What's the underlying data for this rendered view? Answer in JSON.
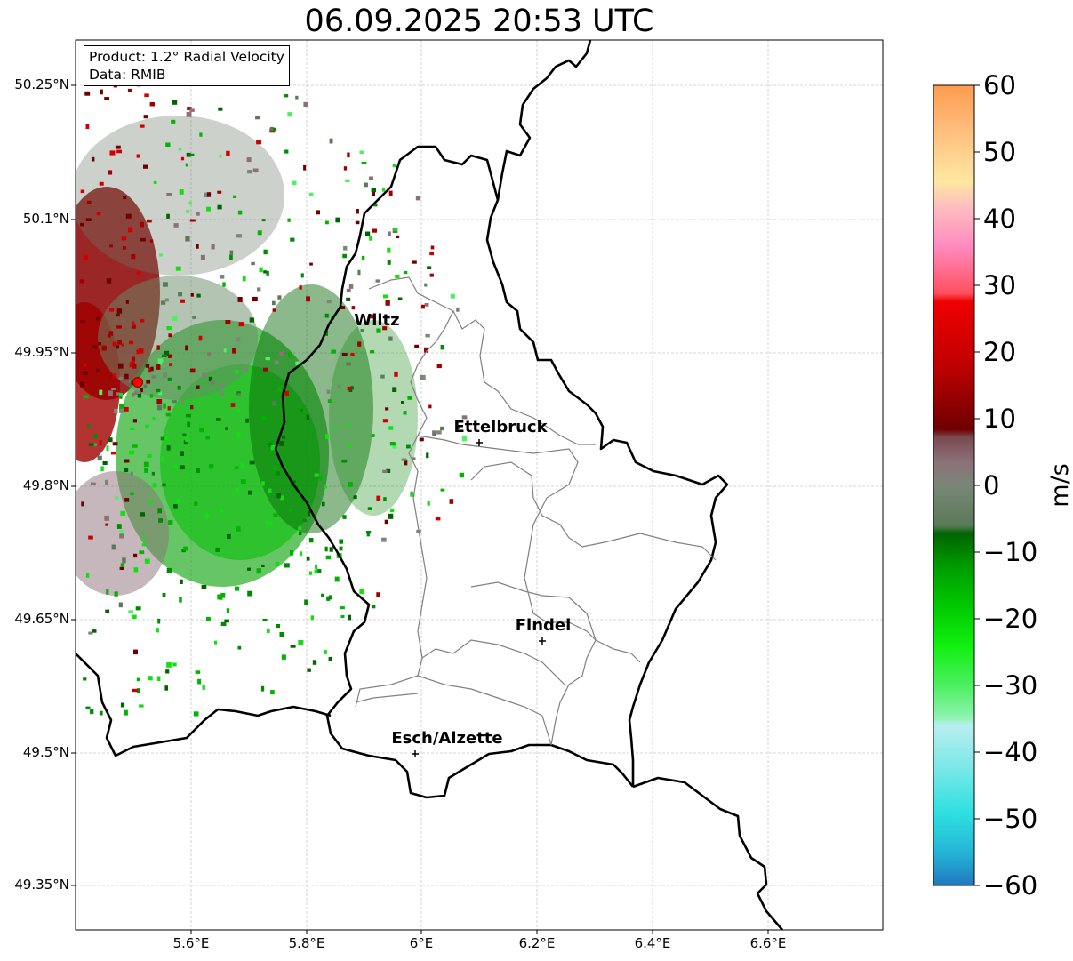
{
  "title": "06.09.2025 20:53 UTC",
  "info_box": {
    "product": "Product: 1.2° Radial Velocity",
    "data_source": "Data: RMIB"
  },
  "axes": {
    "lat_labels": [
      "50.25°N",
      "50.1°N",
      "49.95°N",
      "49.8°N",
      "49.65°N",
      "49.5°N",
      "49.35°N"
    ],
    "lon_labels": [
      "5.6°E",
      "5.8°E",
      "6°E",
      "6.2°E",
      "6.4°E",
      "6.6°E"
    ]
  },
  "cities": [
    {
      "name": "Wiltz"
    },
    {
      "name": "Ettelbruck"
    },
    {
      "name": "Findel"
    },
    {
      "name": "Esch/Alzette"
    }
  ],
  "colorbar": {
    "ticks": [
      "60",
      "50",
      "40",
      "30",
      "20",
      "10",
      "0",
      "−10",
      "−20",
      "−30",
      "−40",
      "−50",
      "−60"
    ],
    "unit": "m/s",
    "range": [
      -60,
      60
    ]
  },
  "colors": {
    "border": "#000000",
    "canton_lines": "#808080",
    "grid": "#c8c8c8",
    "radar_site": "#ff0000"
  }
}
